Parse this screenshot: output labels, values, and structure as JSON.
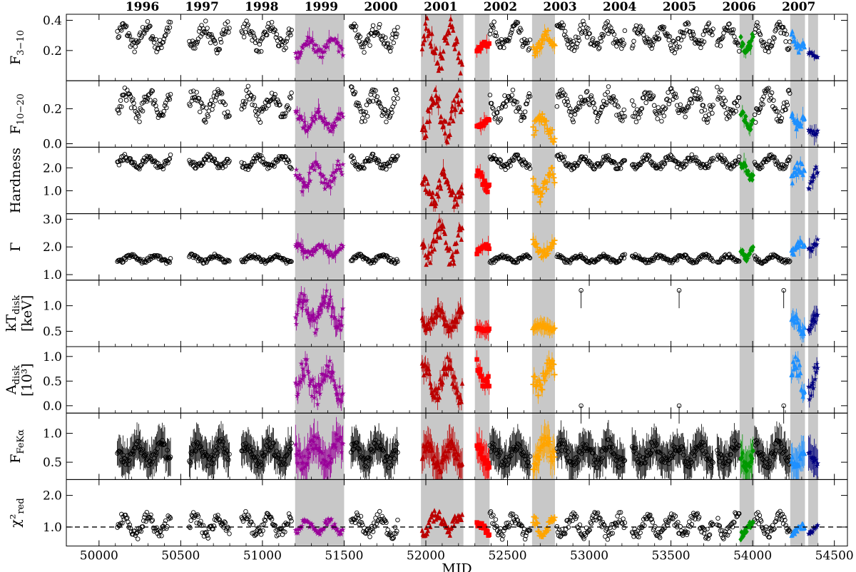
{
  "chart_data": {
    "type": "scatter",
    "xlabel": "MJD",
    "xlim": [
      49800,
      54580
    ],
    "xticks": [
      50000,
      50500,
      51000,
      51500,
      52000,
      52500,
      53000,
      53500,
      54000,
      54500
    ],
    "years": [
      {
        "label": "1996",
        "mjd": 50265
      },
      {
        "label": "1997",
        "mjd": 50630
      },
      {
        "label": "1998",
        "mjd": 50995
      },
      {
        "label": "1999",
        "mjd": 51360
      },
      {
        "label": "2000",
        "mjd": 51725
      },
      {
        "label": "2001",
        "mjd": 52091
      },
      {
        "label": "2002",
        "mjd": 52456
      },
      {
        "label": "2003",
        "mjd": 52821
      },
      {
        "label": "2004",
        "mjd": 53186
      },
      {
        "label": "2005",
        "mjd": 53552
      },
      {
        "label": "2006",
        "mjd": 53917
      },
      {
        "label": "2007",
        "mjd": 54282
      }
    ],
    "shaded_intervals": [
      [
        51200,
        51500
      ],
      [
        51970,
        52230
      ],
      [
        52300,
        52390
      ],
      [
        52650,
        52790
      ],
      [
        53920,
        54010
      ],
      [
        54230,
        54320
      ],
      [
        54340,
        54400
      ]
    ],
    "colors": {
      "hard": "#000000",
      "purple": "#990099",
      "darkred": "#bb0000",
      "red": "#ff0000",
      "orange": "#ffa500",
      "green": "#009900",
      "lightblue": "#1e90ff",
      "navy": "#000080",
      "shade": "#c8c8c8"
    },
    "panels": [
      {
        "id": "F3-10",
        "ylabel": "F",
        "ylabel_sub": "3−10",
        "ylim": [
          0.0,
          0.44
        ],
        "yticks": [
          0.2,
          0.4
        ],
        "tick_labels": [
          "0.2",
          "0.4"
        ]
      },
      {
        "id": "F10-20",
        "ylabel": "F",
        "ylabel_sub": "10−20",
        "ylim": [
          -0.02,
          0.36
        ],
        "yticks": [
          0.0,
          0.2
        ],
        "tick_labels": [
          "0.0",
          "0.2"
        ]
      },
      {
        "id": "Hardness",
        "ylabel": "Hardness",
        "ylabel_sub": "",
        "ylim": [
          0.0,
          2.9
        ],
        "yticks": [
          1.0,
          2.0
        ],
        "tick_labels": [
          "1.0",
          "2.0"
        ]
      },
      {
        "id": "Gamma",
        "ylabel": "Γ",
        "ylabel_sub": "",
        "ylim": [
          0.8,
          3.2
        ],
        "yticks": [
          1.0,
          2.0,
          3.0
        ],
        "tick_labels": [
          "1.0",
          "2.0",
          "3.0"
        ]
      },
      {
        "id": "kTdisk",
        "ylabel": "kT",
        "ylabel_sub": "disk",
        "ylabel2": "[keV]",
        "ylim": [
          0.2,
          1.5
        ],
        "yticks": [
          0.5,
          1.0
        ],
        "tick_labels": [
          "0.5",
          "1.0"
        ]
      },
      {
        "id": "Adisk",
        "ylabel": "A",
        "ylabel_sub": "disk",
        "ylabel2": "[10³]",
        "ylim": [
          -0.15,
          1.2
        ],
        "yticks": [
          0.0,
          0.5,
          1.0
        ],
        "tick_labels": [
          "0.0",
          "0.5",
          "1.0"
        ]
      },
      {
        "id": "FFeKa",
        "ylabel": "F",
        "ylabel_sub": "FeKα",
        "ylim": [
          0.2,
          1.35
        ],
        "yticks": [
          0.5,
          1.0
        ],
        "tick_labels": [
          "0.5",
          "1.0"
        ]
      },
      {
        "id": "chi2red",
        "ylabel": "χ²",
        "ylabel_sub": "red",
        "ylim": [
          0.4,
          2.5
        ],
        "yticks": [
          1.0,
          2.0
        ],
        "tick_labels": [
          "1.0",
          "2.0"
        ],
        "reference_line": 1.0
      }
    ],
    "series": [
      {
        "name": "hard state (black circles)",
        "color": "#000000",
        "marker": "circle",
        "segments": [
          [
            50110,
            50440
          ],
          [
            50550,
            50800
          ],
          [
            50870,
            51180
          ],
          [
            51540,
            51830
          ],
          [
            52390,
            52640
          ],
          [
            52800,
            53220
          ],
          [
            53260,
            53760
          ],
          [
            53780,
            53920
          ],
          [
            54010,
            54230
          ]
        ],
        "levels": {
          "F3-10": [
            0.18,
            0.4
          ],
          "F10-20": [
            0.12,
            0.33
          ],
          "Hardness": [
            1.9,
            2.6
          ],
          "Gamma": [
            1.4,
            1.75
          ],
          "FFeKa": [
            0.4,
            0.9
          ],
          "chi2red": [
            0.6,
            1.5
          ]
        }
      },
      {
        "name": "1999 interval (purple stars)",
        "color": "#990099",
        "marker": "star",
        "segments": [
          [
            51200,
            51495
          ]
        ],
        "levels": {
          "F3-10": [
            0.15,
            0.3
          ],
          "F10-20": [
            0.07,
            0.2
          ],
          "Hardness": [
            0.9,
            2.4
          ],
          "Gamma": [
            1.6,
            2.2
          ],
          "kTdisk": [
            0.45,
            1.3
          ],
          "Adisk": [
            0.0,
            1.0
          ],
          "FFeKa": [
            0.35,
            1.0
          ],
          "chi2red": [
            0.7,
            1.3
          ]
        }
      },
      {
        "name": "2001 interval (dark red triangles)",
        "color": "#bb0000",
        "marker": "triangle",
        "segments": [
          [
            51975,
            52225
          ]
        ],
        "levels": {
          "F3-10": [
            0.03,
            0.44
          ],
          "F10-20": [
            0.0,
            0.33
          ],
          "Hardness": [
            0.2,
            2.0
          ],
          "Gamma": [
            1.2,
            3.0
          ],
          "kTdisk": [
            0.45,
            1.0
          ],
          "Adisk": [
            0.0,
            1.0
          ],
          "FFeKa": [
            0.3,
            0.9
          ],
          "chi2red": [
            0.7,
            1.6
          ]
        }
      },
      {
        "name": "2002 interval (red squares)",
        "color": "#ff0000",
        "marker": "square",
        "segments": [
          [
            52310,
            52390
          ]
        ],
        "levels": {
          "F3-10": [
            0.18,
            0.26
          ],
          "F10-20": [
            0.08,
            0.15
          ],
          "Hardness": [
            0.9,
            2.1
          ],
          "Gamma": [
            1.7,
            2.1
          ],
          "kTdisk": [
            0.5,
            0.6
          ],
          "Adisk": [
            0.3,
            1.0
          ],
          "FFeKa": [
            0.3,
            0.9
          ],
          "chi2red": [
            0.7,
            1.2
          ]
        }
      },
      {
        "name": "2002-2003 interval (orange crosses)",
        "color": "#ffa500",
        "marker": "plus",
        "segments": [
          [
            52655,
            52790
          ]
        ],
        "levels": {
          "F3-10": [
            0.15,
            0.34
          ],
          "F10-20": [
            0.0,
            0.2
          ],
          "Hardness": [
            0.4,
            2.2
          ],
          "Gamma": [
            1.6,
            2.3
          ],
          "kTdisk": [
            0.5,
            0.65
          ],
          "Adisk": [
            0.2,
            1.0
          ],
          "FFeKa": [
            0.35,
            1.0
          ],
          "chi2red": [
            0.6,
            1.5
          ]
        }
      },
      {
        "name": "2006 interval (green diamonds)",
        "color": "#009900",
        "marker": "diamond",
        "segments": [
          [
            53925,
            54005
          ]
        ],
        "levels": {
          "F3-10": [
            0.18,
            0.38
          ],
          "F10-20": [
            0.08,
            0.22
          ],
          "Hardness": [
            1.3,
            2.4
          ],
          "Gamma": [
            1.5,
            2.3
          ],
          "FFeKa": [
            0.35,
            0.9
          ],
          "chi2red": [
            0.6,
            1.2
          ]
        }
      },
      {
        "name": "2007 interval (light blue triangles)",
        "color": "#1e90ff",
        "marker": "triangle",
        "segments": [
          [
            54235,
            54320
          ]
        ],
        "levels": {
          "F3-10": [
            0.18,
            0.35
          ],
          "F10-20": [
            0.08,
            0.22
          ],
          "Hardness": [
            1.0,
            2.3
          ],
          "Gamma": [
            1.6,
            2.3
          ],
          "kTdisk": [
            0.4,
            0.9
          ],
          "Adisk": [
            0.0,
            1.0
          ],
          "FFeKa": [
            0.4,
            0.8
          ],
          "chi2red": [
            0.7,
            1.1
          ]
        }
      },
      {
        "name": "2007 interval (navy stars)",
        "color": "#000080",
        "marker": "star",
        "segments": [
          [
            54340,
            54400
          ]
        ],
        "levels": {
          "F3-10": [
            0.14,
            0.19
          ],
          "F10-20": [
            0.05,
            0.1
          ],
          "Hardness": [
            0.9,
            2.1
          ],
          "Gamma": [
            1.8,
            2.4
          ],
          "kTdisk": [
            0.4,
            0.85
          ],
          "Adisk": [
            0.0,
            1.0
          ],
          "FFeKa": [
            0.4,
            0.8
          ],
          "chi2red": [
            0.7,
            1.1
          ]
        }
      }
    ],
    "isolated_points": [
      {
        "panel": "kTdisk",
        "x": 52950,
        "y": 1.3,
        "color": "#000000"
      },
      {
        "panel": "kTdisk",
        "x": 53550,
        "y": 1.3,
        "color": "#000000"
      },
      {
        "panel": "kTdisk",
        "x": 54190,
        "y": 1.3,
        "color": "#000000"
      },
      {
        "panel": "Adisk",
        "x": 52950,
        "y": 0.0,
        "color": "#000000"
      },
      {
        "panel": "Adisk",
        "x": 53550,
        "y": 0.0,
        "color": "#000000"
      },
      {
        "panel": "Adisk",
        "x": 54190,
        "y": 0.0,
        "color": "#000000"
      }
    ]
  }
}
